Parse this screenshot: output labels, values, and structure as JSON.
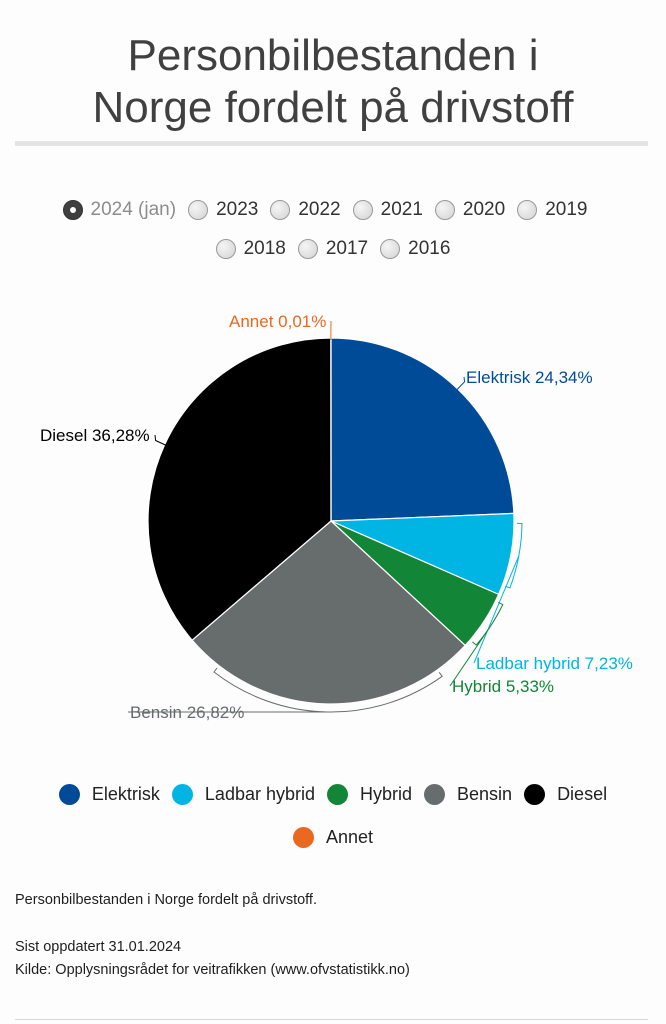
{
  "title": {
    "line1": "Personbilbestanden i",
    "line2": "Norge fordelt på drivstoff"
  },
  "year_options": [
    {
      "label": "2024 (jan)",
      "selected": true
    },
    {
      "label": "2023",
      "selected": false
    },
    {
      "label": "2022",
      "selected": false
    },
    {
      "label": "2021",
      "selected": false
    },
    {
      "label": "2020",
      "selected": false
    },
    {
      "label": "2019",
      "selected": false
    },
    {
      "label": "2018",
      "selected": false
    },
    {
      "label": "2017",
      "selected": false
    },
    {
      "label": "2016",
      "selected": false
    }
  ],
  "chart_data": {
    "type": "pie",
    "start_angle_deg": 0,
    "direction": "clockwise",
    "slices": [
      {
        "name": "Elektrisk",
        "value": 24.34,
        "label": "Elektrisk 24,34%",
        "color": "#004b98"
      },
      {
        "name": "Ladbar hybrid",
        "value": 7.23,
        "label": "Ladbar hybrid 7,23%",
        "color": "#00b4e3"
      },
      {
        "name": "Hybrid",
        "value": 5.33,
        "label": "Hybrid 5,33%",
        "color": "#138537"
      },
      {
        "name": "Bensin",
        "value": 26.82,
        "label": "Bensin 26,82%",
        "color": "#676c6d"
      },
      {
        "name": "Diesel",
        "value": 36.28,
        "label": "Diesel 36,28%",
        "color": "#000000"
      },
      {
        "name": "Annet",
        "value": 0.01,
        "label": "Annet 0,01%",
        "color": "#e8691f"
      }
    ],
    "label_colors": {
      "Elektrisk": "#004b98",
      "Ladbar hybrid": "#00b4e3",
      "Hybrid": "#138537",
      "Bensin": "#676c6d",
      "Diesel": "#000000",
      "Annet": "#e8691f"
    },
    "legend_position": "bottom"
  },
  "legend_rows": [
    [
      "Elektrisk",
      "Ladbar hybrid",
      "Hybrid",
      "Bensin",
      "Diesel"
    ],
    [
      "Annet"
    ]
  ],
  "footer": {
    "caption": "Personbilbestanden i Norge fordelt på drivstoff.",
    "updated": "Sist oppdatert 31.01.2024",
    "source": "Kilde: Opplysningsrådet for veitrafikken (www.ofvstatistikk.no)"
  }
}
